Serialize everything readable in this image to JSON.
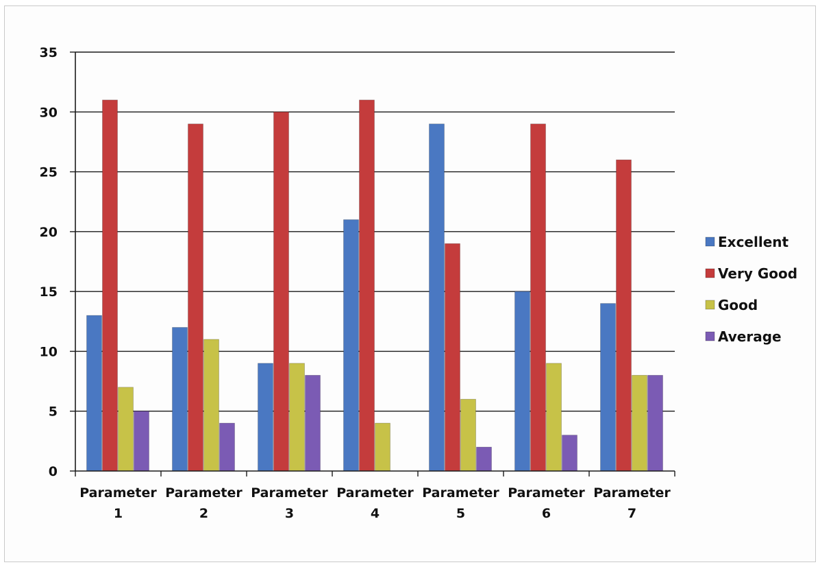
{
  "chart_data": {
    "type": "bar",
    "title": "",
    "xlabel": "",
    "ylabel": "",
    "ylim": [
      0,
      35
    ],
    "yticks": [
      0,
      5,
      10,
      15,
      20,
      25,
      30,
      35
    ],
    "grid": true,
    "legend_position": "right",
    "categories": [
      [
        "Parameter",
        "1"
      ],
      [
        "Parameter",
        "2"
      ],
      [
        "Parameter",
        "3"
      ],
      [
        "Parameter",
        "4"
      ],
      [
        "Parameter",
        "5"
      ],
      [
        "Parameter",
        "6"
      ],
      [
        "Parameter",
        "7"
      ]
    ],
    "series": [
      {
        "name": "Excellent",
        "color": "#4a78c2",
        "values": [
          13,
          12,
          9,
          21,
          29,
          15,
          14
        ]
      },
      {
        "name": "Very Good",
        "color": "#c43c3c",
        "values": [
          31,
          29,
          30,
          31,
          19,
          29,
          26
        ]
      },
      {
        "name": "Good",
        "color": "#c7c248",
        "values": [
          7,
          11,
          9,
          4,
          6,
          9,
          8
        ]
      },
      {
        "name": "Average",
        "color": "#7b5bb4",
        "values": [
          5,
          4,
          8,
          0,
          2,
          3,
          8
        ]
      }
    ]
  }
}
